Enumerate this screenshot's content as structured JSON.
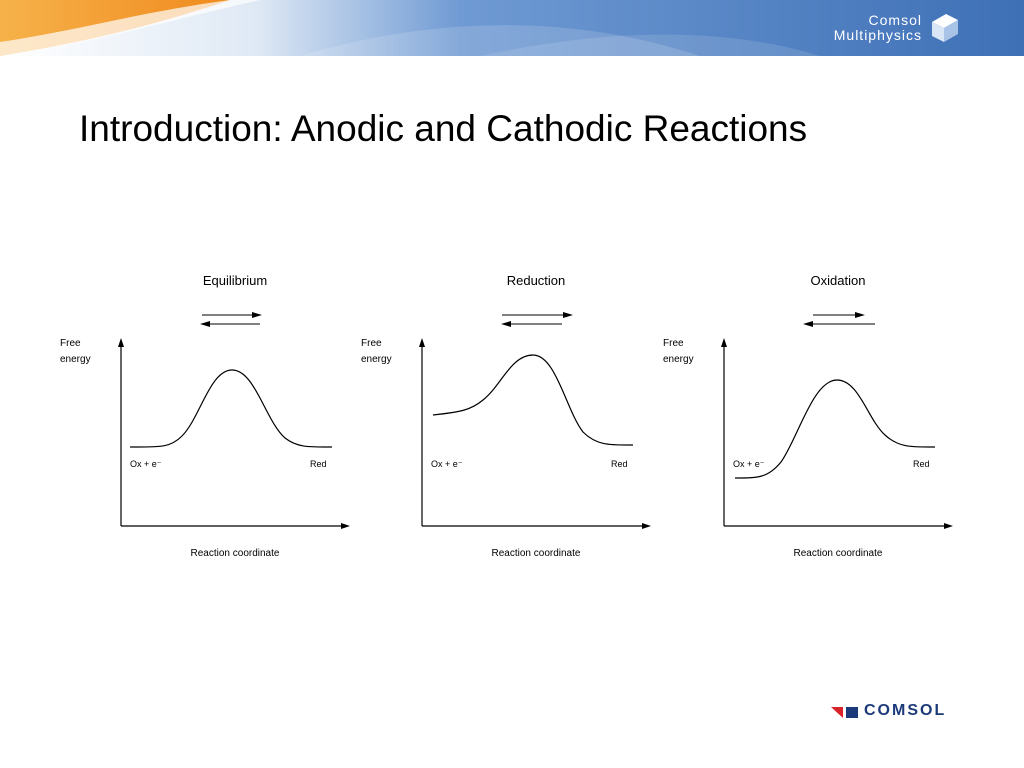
{
  "header": {
    "brand_line1": "Comsol",
    "brand_line2": "Multiphysics",
    "registered_mark": "®",
    "colors": {
      "orange": "#f3a53b",
      "blue": "#4b7fc1",
      "light_blue": "#9fc0e8"
    }
  },
  "slide": {
    "title": "Introduction: Anodic and Cathodic Reactions"
  },
  "panels": [
    {
      "title": "Equilibrium",
      "y_label_line1": "Free",
      "y_label_line2": "energy",
      "left_label": "Ox + e⁻",
      "right_label": "Red",
      "x_label": "Reaction coordinate",
      "arrow_note": "equal forward and backward arrows"
    },
    {
      "title": "Reduction",
      "y_label_line1": "Free",
      "y_label_line2": "energy",
      "left_label": "Ox + e⁻",
      "right_label": "Red",
      "x_label": "Reaction coordinate",
      "arrow_note": "longer forward arrow"
    },
    {
      "title": "Oxidation",
      "y_label_line1": "Free",
      "y_label_line2": "energy",
      "left_label": "Ox + e⁻",
      "right_label": "Red",
      "x_label": "Reaction coordinate",
      "arrow_note": "longer backward arrow"
    }
  ],
  "footer": {
    "brand": "COMSOL",
    "colors": {
      "red": "#d8232a",
      "navy": "#1c3a7a"
    }
  }
}
